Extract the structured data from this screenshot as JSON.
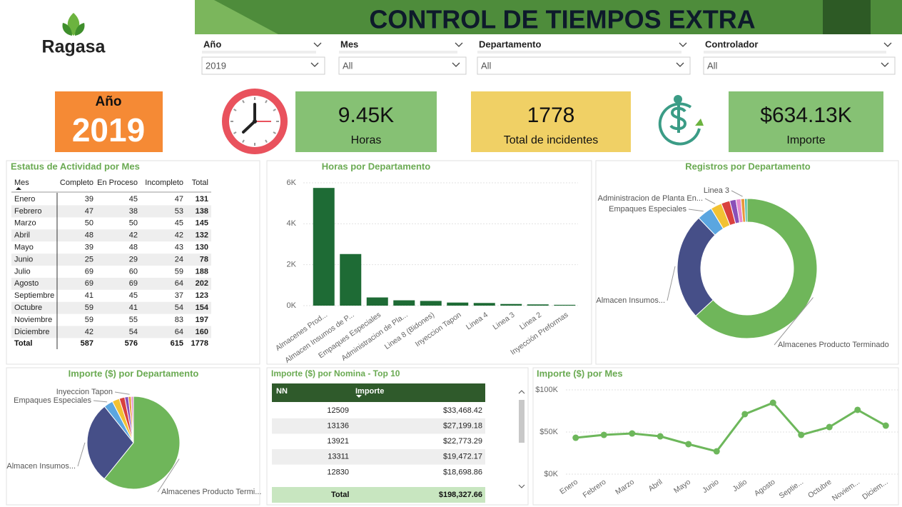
{
  "header": {
    "logo": "Ragasa",
    "title": "CONTROL DE TIEMPOS EXTRA"
  },
  "filters": [
    {
      "label": "Año",
      "value": "2019"
    },
    {
      "label": "Mes",
      "value": "All"
    },
    {
      "label": "Departamento",
      "value": "All"
    },
    {
      "label": "Controlador",
      "value": "All"
    }
  ],
  "year_card": {
    "label": "Año",
    "value": "2019"
  },
  "kpis": [
    {
      "value": "9.45K",
      "label": "Horas"
    },
    {
      "value": "1778",
      "label": "Total de incidentes"
    },
    {
      "value": "$634.13K",
      "label": "Importe"
    }
  ],
  "status_table": {
    "title": "Estatus de Actividad por Mes",
    "columns": [
      "Mes",
      "Completo",
      "En Proceso",
      "Incompleto",
      "Total"
    ],
    "rows": [
      [
        "Enero",
        "39",
        "45",
        "47",
        "131"
      ],
      [
        "Febrero",
        "47",
        "38",
        "53",
        "138"
      ],
      [
        "Marzo",
        "50",
        "50",
        "45",
        "145"
      ],
      [
        "Abril",
        "48",
        "42",
        "42",
        "132"
      ],
      [
        "Mayo",
        "39",
        "48",
        "43",
        "130"
      ],
      [
        "Junio",
        "25",
        "29",
        "24",
        "78"
      ],
      [
        "Julio",
        "69",
        "60",
        "59",
        "188"
      ],
      [
        "Agosto",
        "69",
        "69",
        "64",
        "202"
      ],
      [
        "Septiembre",
        "41",
        "45",
        "37",
        "123"
      ],
      [
        "Octubre",
        "59",
        "41",
        "54",
        "154"
      ],
      [
        "Noviembre",
        "59",
        "55",
        "83",
        "197"
      ],
      [
        "Diciembre",
        "42",
        "54",
        "64",
        "160"
      ]
    ],
    "total": [
      "Total",
      "587",
      "576",
      "615",
      "1778"
    ]
  },
  "nomina_table": {
    "title": "Importe ($) por Nomina - Top 10",
    "columns": [
      "NN",
      "Importe"
    ],
    "rows": [
      [
        "12509",
        "$33,468.42"
      ],
      [
        "13136",
        "$27,199.18"
      ],
      [
        "13921",
        "$22,773.29"
      ],
      [
        "13311",
        "$19,472.17"
      ],
      [
        "12830",
        "$18,698.86"
      ]
    ],
    "total": [
      "Total",
      "$198,327.66"
    ]
  },
  "chart_data": [
    {
      "type": "bar",
      "title": "Horas por Departamento",
      "categories": [
        "Almacenes Prod...",
        "Almacen Insumos de P...",
        "Empaques Especiales",
        "Administracion de Pla...",
        "Linea 8 (Bidones)",
        "Inyeccion Tapon",
        "Linea 4",
        "Linea 3",
        "Linea 2",
        "Inyección Preformas"
      ],
      "values": [
        5750,
        2520,
        400,
        260,
        230,
        150,
        130,
        80,
        60,
        40
      ],
      "color": "#1e6b35",
      "ylim": [
        0,
        6000
      ],
      "yticks": [
        {
          "value": 0,
          "label": "0K"
        },
        {
          "value": 2000,
          "label": "2K"
        },
        {
          "value": 4000,
          "label": "4K"
        },
        {
          "value": 6000,
          "label": "6K"
        }
      ],
      "grid": true
    },
    {
      "type": "donut",
      "title": "Registros por Departamento",
      "categories": [
        "Almacenes Producto Terminado",
        "Almacen Insumos...",
        "Empaques Especiales",
        "Administracion de Planta En...",
        null,
        null,
        null,
        "Linea 3",
        null
      ],
      "values": [
        1100,
        430,
        62,
        45,
        35,
        25,
        20,
        15,
        10
      ],
      "colors": [
        "#6fb65a",
        "#464f88",
        "#5ba6e0",
        "#f2c233",
        "#d9413e",
        "#8a4fb8",
        "#e58bd0",
        "#e8983a",
        "#4cb8a8"
      ]
    },
    {
      "type": "pie",
      "title": "Importe ($) por Departamento",
      "categories": [
        "Almacenes Producto Termi...",
        "Almacen Insumos...",
        "Empaques Especiales",
        null,
        null,
        null,
        "Inyeccion Tapon",
        null
      ],
      "values": [
        380000,
        178000,
        20000,
        16000,
        12000,
        8000,
        6000,
        5000
      ],
      "colors": [
        "#6fb65a",
        "#464f88",
        "#5ba6e0",
        "#f2c233",
        "#d9413e",
        "#8a4fb8",
        "#e8983a",
        "#e58bd0"
      ]
    },
    {
      "type": "line",
      "title": "Importe ($) por Mes",
      "categories": [
        "Enero",
        "Febrero",
        "Marzo",
        "Abril",
        "Mayo",
        "Junio",
        "Julio",
        "Agosto",
        "Septie...",
        "Octubre",
        "Noviem...",
        "Diciem..."
      ],
      "values": [
        43200,
        46600,
        48300,
        44900,
        35600,
        27100,
        71200,
        84700,
        46600,
        55900,
        76300,
        57600
      ],
      "color": "#6db75b",
      "ylim": [
        0,
        100000
      ],
      "yticks": [
        {
          "value": 0,
          "label": "$0K"
        },
        {
          "value": 50000,
          "label": "$50K"
        },
        {
          "value": 100000,
          "label": "$100K"
        }
      ],
      "grid": true
    }
  ]
}
